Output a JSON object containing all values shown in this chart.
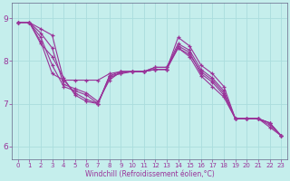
{
  "xlabel": "Windchill (Refroidissement éolien,°C)",
  "bg_color": "#c5eeec",
  "line_color": "#993399",
  "grid_color": "#aadddd",
  "axis_color": "#666688",
  "xlim": [
    -0.5,
    23.5
  ],
  "ylim": [
    5.7,
    9.35
  ],
  "yticks": [
    6,
    7,
    8,
    9
  ],
  "xticks": [
    0,
    1,
    2,
    3,
    4,
    5,
    6,
    7,
    8,
    9,
    10,
    11,
    12,
    13,
    14,
    15,
    16,
    17,
    18,
    19,
    20,
    21,
    22,
    23
  ],
  "series": [
    [
      8.9,
      8.9,
      8.75,
      8.6,
      7.55,
      7.55,
      7.55,
      7.55,
      7.7,
      7.75,
      7.75,
      7.75,
      7.8,
      7.8,
      8.55,
      8.35,
      7.9,
      7.7,
      7.4,
      6.65,
      6.65,
      6.65,
      6.45,
      6.25
    ],
    [
      8.9,
      8.9,
      8.65,
      8.3,
      7.45,
      7.35,
      7.25,
      7.05,
      7.55,
      7.75,
      7.75,
      7.75,
      7.85,
      7.85,
      8.4,
      8.25,
      7.8,
      7.6,
      7.3,
      6.65,
      6.65,
      6.65,
      6.5,
      6.25
    ],
    [
      8.9,
      8.9,
      8.55,
      7.9,
      7.4,
      7.3,
      7.2,
      7.0,
      7.65,
      7.75,
      7.75,
      7.75,
      7.85,
      7.85,
      8.3,
      8.15,
      7.75,
      7.55,
      7.25,
      6.65,
      6.65,
      6.65,
      6.55,
      6.25
    ],
    [
      8.9,
      8.9,
      8.45,
      7.7,
      7.55,
      7.25,
      7.1,
      7.0,
      7.65,
      7.7,
      7.75,
      7.75,
      7.8,
      7.8,
      8.35,
      8.2,
      7.7,
      7.5,
      7.2,
      6.65,
      6.65,
      6.65,
      6.55,
      6.25
    ],
    [
      8.9,
      8.9,
      8.4,
      8.1,
      7.6,
      7.2,
      7.05,
      7.0,
      7.6,
      7.72,
      7.75,
      7.75,
      7.8,
      7.8,
      8.3,
      8.1,
      7.65,
      7.4,
      7.15,
      6.65,
      6.65,
      6.65,
      6.55,
      6.25
    ]
  ]
}
